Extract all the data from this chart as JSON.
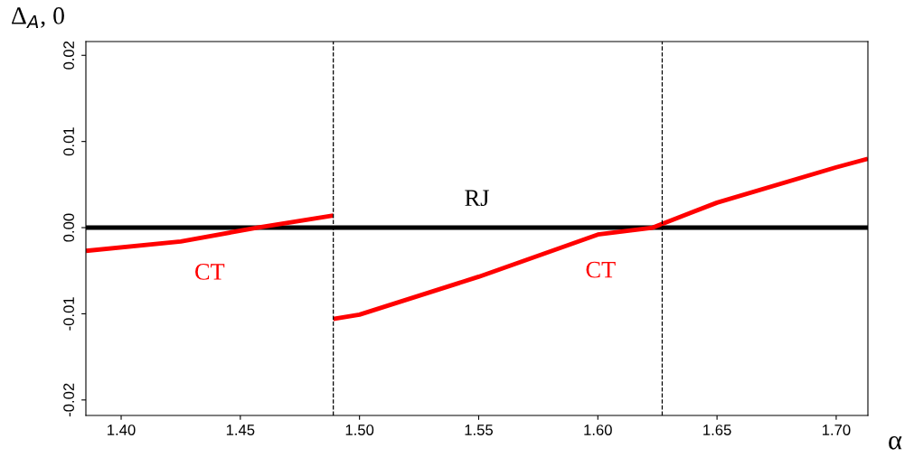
{
  "chart_data": {
    "type": "line",
    "xlabel": "α",
    "ylabel": "Δ$_{A}$, 0",
    "xlim": [
      1.3852,
      1.7133
    ],
    "ylim": [
      -0.0218,
      0.0216
    ],
    "xticks": [
      {
        "value": 1.4,
        "label": "1.40"
      },
      {
        "value": 1.45,
        "label": "1.45"
      },
      {
        "value": 1.5,
        "label": "1.50"
      },
      {
        "value": 1.55,
        "label": "1.55"
      },
      {
        "value": 1.6,
        "label": "1.60"
      },
      {
        "value": 1.65,
        "label": "1.65"
      },
      {
        "value": 1.7,
        "label": "1.70"
      }
    ],
    "yticks": [
      {
        "value": -0.02,
        "label": "-0.02"
      },
      {
        "value": -0.01,
        "label": "-0.01"
      },
      {
        "value": 0,
        "label": "0.00"
      },
      {
        "value": 0.01,
        "label": "0.01"
      },
      {
        "value": 0.02,
        "label": "0.02"
      }
    ],
    "series": [
      {
        "name": "RJ",
        "color": "#000000",
        "x": [
          1.3852,
          1.7133
        ],
        "values": [
          0,
          0
        ]
      },
      {
        "name": "CT",
        "color": "#ff0000",
        "x": [
          1.3852,
          1.425,
          1.457,
          1.489
        ],
        "values": [
          -0.0027,
          -0.0016,
          0,
          0.0014
        ]
      },
      {
        "name": "CT",
        "color": "#ff0000",
        "x": [
          1.489,
          1.5,
          1.55,
          1.6,
          1.623,
          1.65,
          1.7,
          1.7133
        ],
        "values": [
          -0.0106,
          -0.0101,
          -0.0057,
          -0.0008,
          0,
          0.0029,
          0.007,
          0.008
        ]
      }
    ],
    "ref_lines": [
      {
        "axis": "x",
        "value": 1.489,
        "line_style": "dashed",
        "color": "#000000"
      },
      {
        "axis": "x",
        "value": 1.627,
        "line_style": "dashed",
        "color": "#000000"
      }
    ],
    "grid": false,
    "legend": false,
    "marker": "none",
    "line_style": "solid"
  }
}
